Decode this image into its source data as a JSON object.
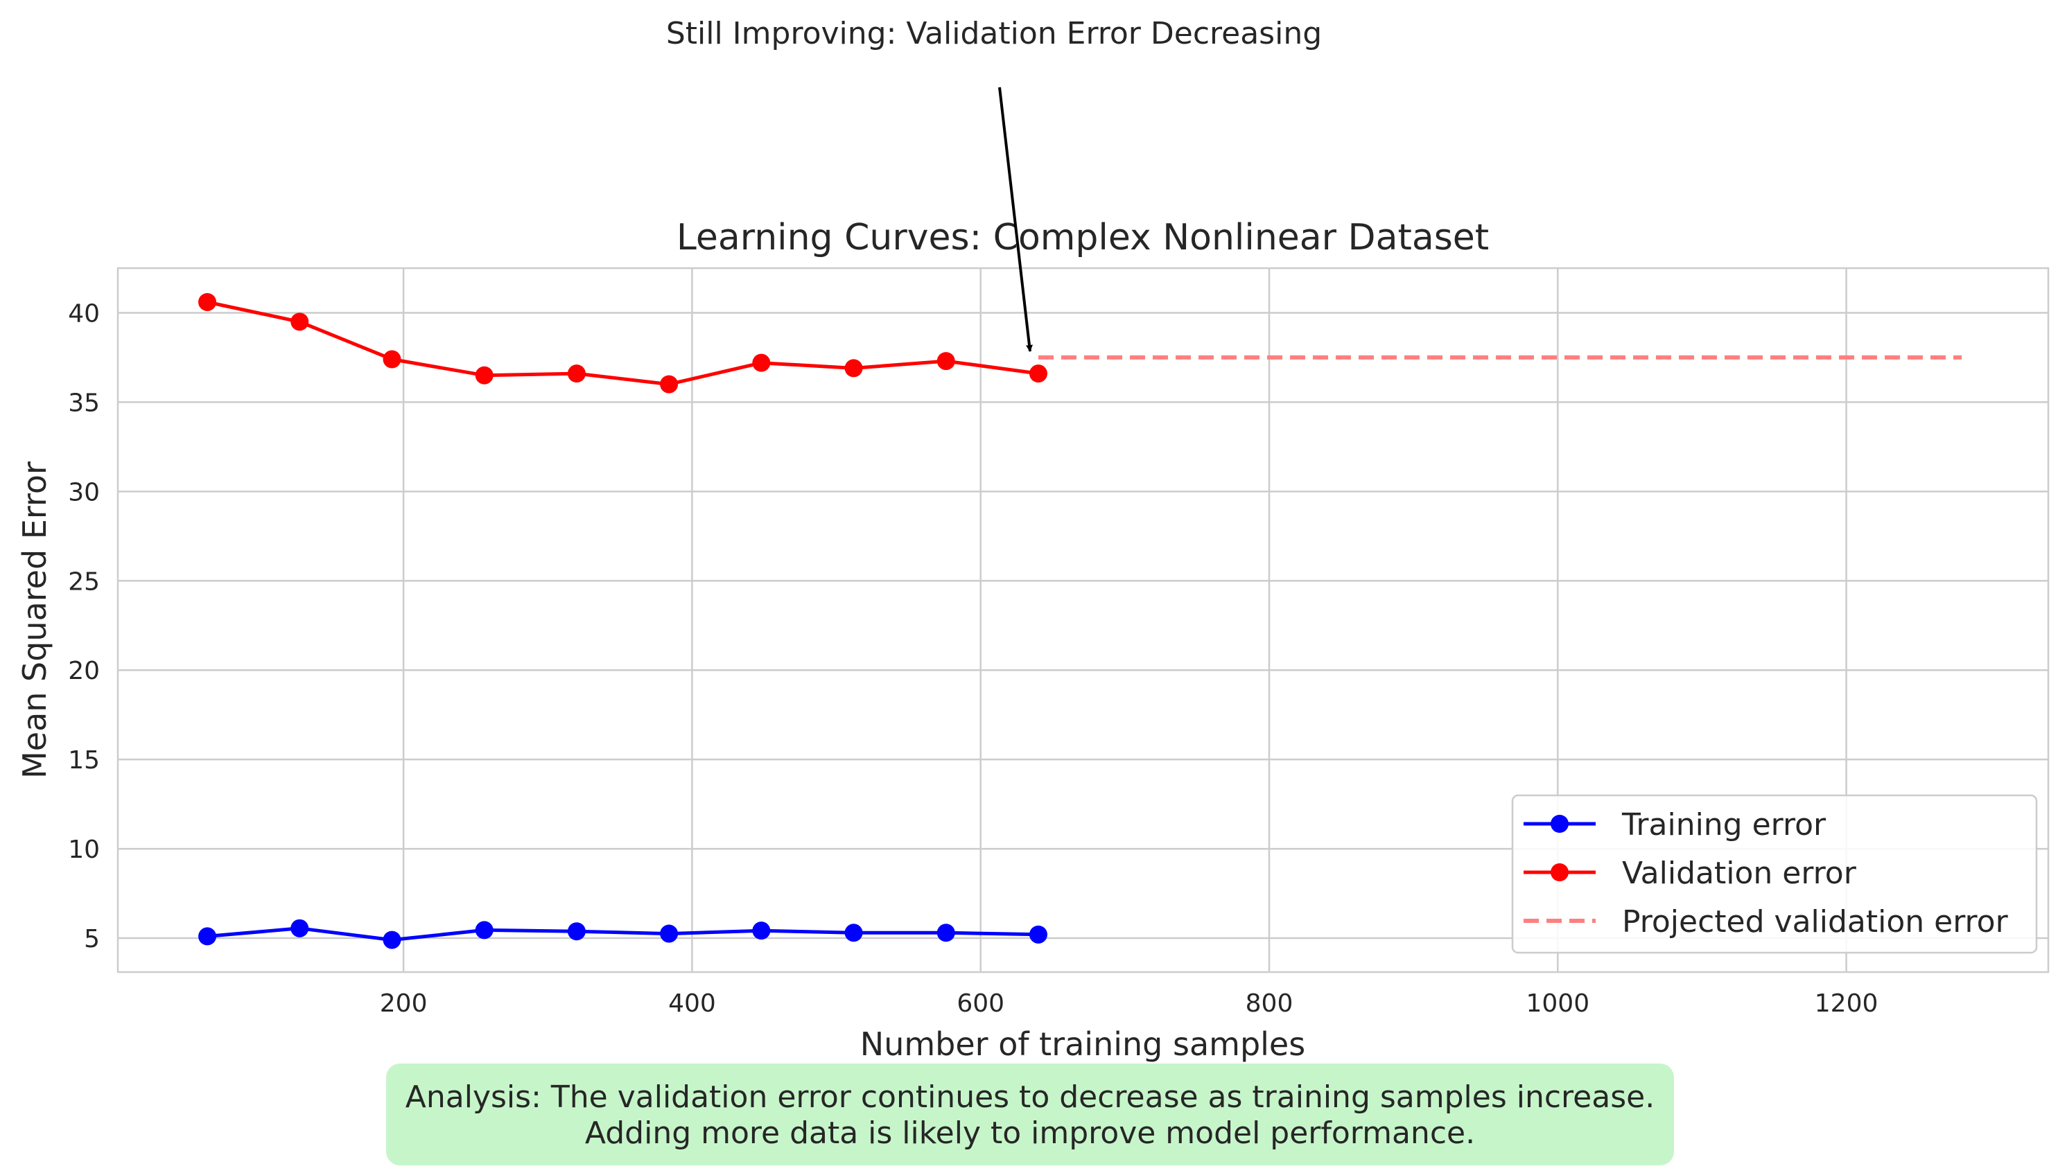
{
  "chart_data": {
    "type": "line",
    "title": "Learning Curves: Complex Nonlinear Dataset",
    "xlabel": "Number of training samples",
    "ylabel": "Mean Squared Error",
    "xlim": [
      2,
      1340
    ],
    "ylim": [
      3.1,
      42.5
    ],
    "xticks": [
      200,
      400,
      600,
      800,
      1000,
      1200
    ],
    "yticks": [
      5,
      10,
      15,
      20,
      25,
      30,
      35,
      40
    ],
    "grid": true,
    "legend_position": "lower-right",
    "x": [
      64,
      128,
      192,
      256,
      320,
      384,
      448,
      512,
      576,
      640
    ],
    "series": [
      {
        "name": "Training error",
        "color": "#0000ff",
        "style": "solid-with-circle-markers",
        "values": [
          5.1,
          5.55,
          4.9,
          5.45,
          5.38,
          5.25,
          5.42,
          5.3,
          5.3,
          5.2
        ]
      },
      {
        "name": "Validation error",
        "color": "#ff0000",
        "style": "solid-with-circle-markers",
        "values": [
          40.6,
          39.5,
          37.4,
          36.5,
          36.6,
          36.0,
          37.2,
          36.9,
          37.3,
          36.6
        ]
      },
      {
        "name": "Projected validation error",
        "color": "#ff7f7f",
        "style": "dashed",
        "x": [
          640,
          1280
        ],
        "values": [
          37.5,
          37.5
        ]
      }
    ],
    "annotation": {
      "text": "Still Improving: Validation Error Decreasing",
      "target": {
        "x": 640,
        "y": 37.5
      }
    },
    "analysis_box": {
      "lines": [
        "Analysis: The validation error continues to decrease as training samples increase.",
        "Adding more data is likely to improve model performance."
      ],
      "color": "#c6f5c9"
    }
  }
}
